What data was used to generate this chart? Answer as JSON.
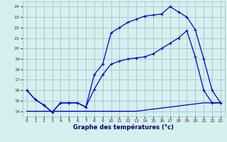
{
  "title": "Graphe des températures (°c)",
  "background_color": "#d6f0f0",
  "grid_color": "#a0b8c8",
  "line_color": "#0000cc",
  "xlim": [
    -0.5,
    23.5
  ],
  "ylim": [
    13.5,
    24.5
  ],
  "xticks": [
    0,
    1,
    2,
    3,
    4,
    5,
    6,
    7,
    8,
    9,
    10,
    11,
    12,
    13,
    14,
    15,
    16,
    17,
    18,
    19,
    20,
    21,
    22,
    23
  ],
  "yticks": [
    14,
    15,
    16,
    17,
    18,
    19,
    20,
    21,
    22,
    23,
    24
  ],
  "line1_x": [
    0,
    1,
    2,
    3,
    4,
    5,
    6,
    7,
    8,
    9,
    10,
    11,
    12,
    13,
    14,
    15,
    16,
    17,
    18,
    19,
    20,
    21,
    22,
    23
  ],
  "line1_y": [
    16.0,
    15.1,
    14.6,
    13.9,
    14.8,
    14.8,
    14.8,
    14.4,
    16.1,
    17.5,
    18.5,
    18.8,
    19.0,
    19.1,
    19.2,
    19.5,
    20.0,
    20.5,
    21.0,
    21.7,
    19.2,
    16.0,
    14.8,
    14.8
  ],
  "line2_x": [
    0,
    1,
    2,
    3,
    4,
    5,
    6,
    7,
    8,
    9,
    10,
    11,
    12,
    13,
    14,
    15,
    16,
    17,
    18,
    19,
    20,
    21,
    22,
    23
  ],
  "line2_y": [
    16.0,
    15.1,
    14.6,
    13.9,
    14.8,
    14.8,
    14.8,
    14.4,
    17.5,
    18.5,
    21.5,
    22.0,
    22.5,
    22.8,
    23.1,
    23.2,
    23.3,
    24.0,
    23.5,
    23.0,
    21.8,
    19.0,
    16.0,
    14.8
  ],
  "line3_x": [
    0,
    1,
    2,
    3,
    4,
    5,
    6,
    7,
    8,
    9,
    10,
    11,
    12,
    13,
    14,
    15,
    16,
    17,
    18,
    19,
    20,
    21,
    22,
    23
  ],
  "line3_y": [
    14.0,
    14.0,
    14.0,
    14.0,
    14.0,
    14.0,
    14.0,
    14.0,
    14.0,
    14.0,
    14.0,
    14.0,
    14.0,
    14.0,
    14.1,
    14.2,
    14.3,
    14.4,
    14.5,
    14.6,
    14.7,
    14.8,
    14.8,
    14.8
  ]
}
